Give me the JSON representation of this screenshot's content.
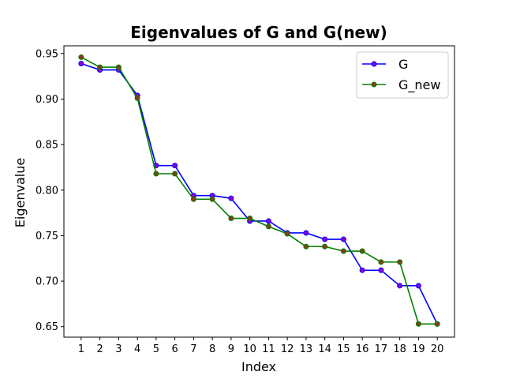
{
  "chart_data": {
    "type": "line",
    "title": "Eigenvalues of G and G(new)",
    "xlabel": "Index",
    "ylabel": "Eigenvalue",
    "x": [
      1,
      2,
      3,
      4,
      5,
      6,
      7,
      8,
      9,
      10,
      11,
      12,
      13,
      14,
      15,
      16,
      17,
      18,
      19,
      20
    ],
    "xlim": [
      0.08,
      20.92
    ],
    "ylim": [
      0.6385,
      0.9585
    ],
    "yticks": [
      0.65,
      0.7,
      0.75,
      0.8,
      0.85,
      0.9,
      0.95
    ],
    "ytick_labels": [
      "0.65",
      "0.70",
      "0.75",
      "0.80",
      "0.85",
      "0.90",
      "0.95"
    ],
    "grid": false,
    "legend_position": "top-right",
    "series": [
      {
        "name": "G",
        "line_color": "#0000ff",
        "marker_color": "#9400d3",
        "values": [
          0.939,
          0.932,
          0.932,
          0.904,
          0.827,
          0.827,
          0.794,
          0.794,
          0.791,
          0.766,
          0.766,
          0.753,
          0.753,
          0.746,
          0.746,
          0.712,
          0.712,
          0.695,
          0.695,
          0.653
        ]
      },
      {
        "name": "G_new",
        "line_color": "#008000",
        "marker_color": "#8b3a1a",
        "values": [
          0.946,
          0.935,
          0.935,
          0.901,
          0.818,
          0.818,
          0.79,
          0.79,
          0.769,
          0.769,
          0.76,
          0.752,
          0.738,
          0.738,
          0.733,
          0.733,
          0.721,
          0.721,
          0.653,
          0.653
        ]
      }
    ]
  }
}
